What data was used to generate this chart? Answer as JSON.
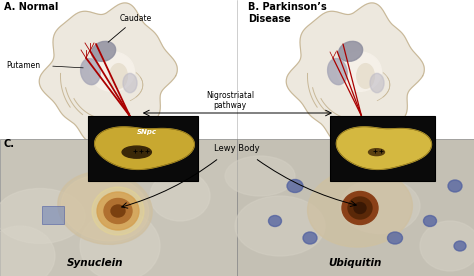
{
  "panel_A_label": "A. Normal",
  "panel_B_label": "B. Parkinson’s\nDisease",
  "panel_C_label": "C.",
  "label_caudate": "Caudate",
  "label_putamen": "Putamen",
  "label_pathway": "Nigrostriatal\npathway",
  "label_SNpc": "SNpc",
  "label_lewy": "Lewy Body",
  "label_synuclein": "Synuclein",
  "label_ubiquitin": "Ubiquitin",
  "brain_color": "#ede8de",
  "brain_edge": "#c8b898",
  "brain_shadow": "#d8cfc0",
  "gray1": "#9090a0",
  "gray2": "#a8a8b8",
  "gray3": "#c0bdc8",
  "red_color": "#aa0000",
  "snpc_tissue": "#c8a830",
  "snpc_bg": "#111111",
  "micro_bg_left": "#c8c8c0",
  "micro_bg_right": "#c0c0b8",
  "cell_color": "#d8c898",
  "lewy_halo": "#d4a860",
  "lewy_mid": "#b07030",
  "lewy_dark": "#603010",
  "lewy_core_r": "#5a2808",
  "nucleus_blue": "#6070a0",
  "dot_blue": "#5060a0"
}
